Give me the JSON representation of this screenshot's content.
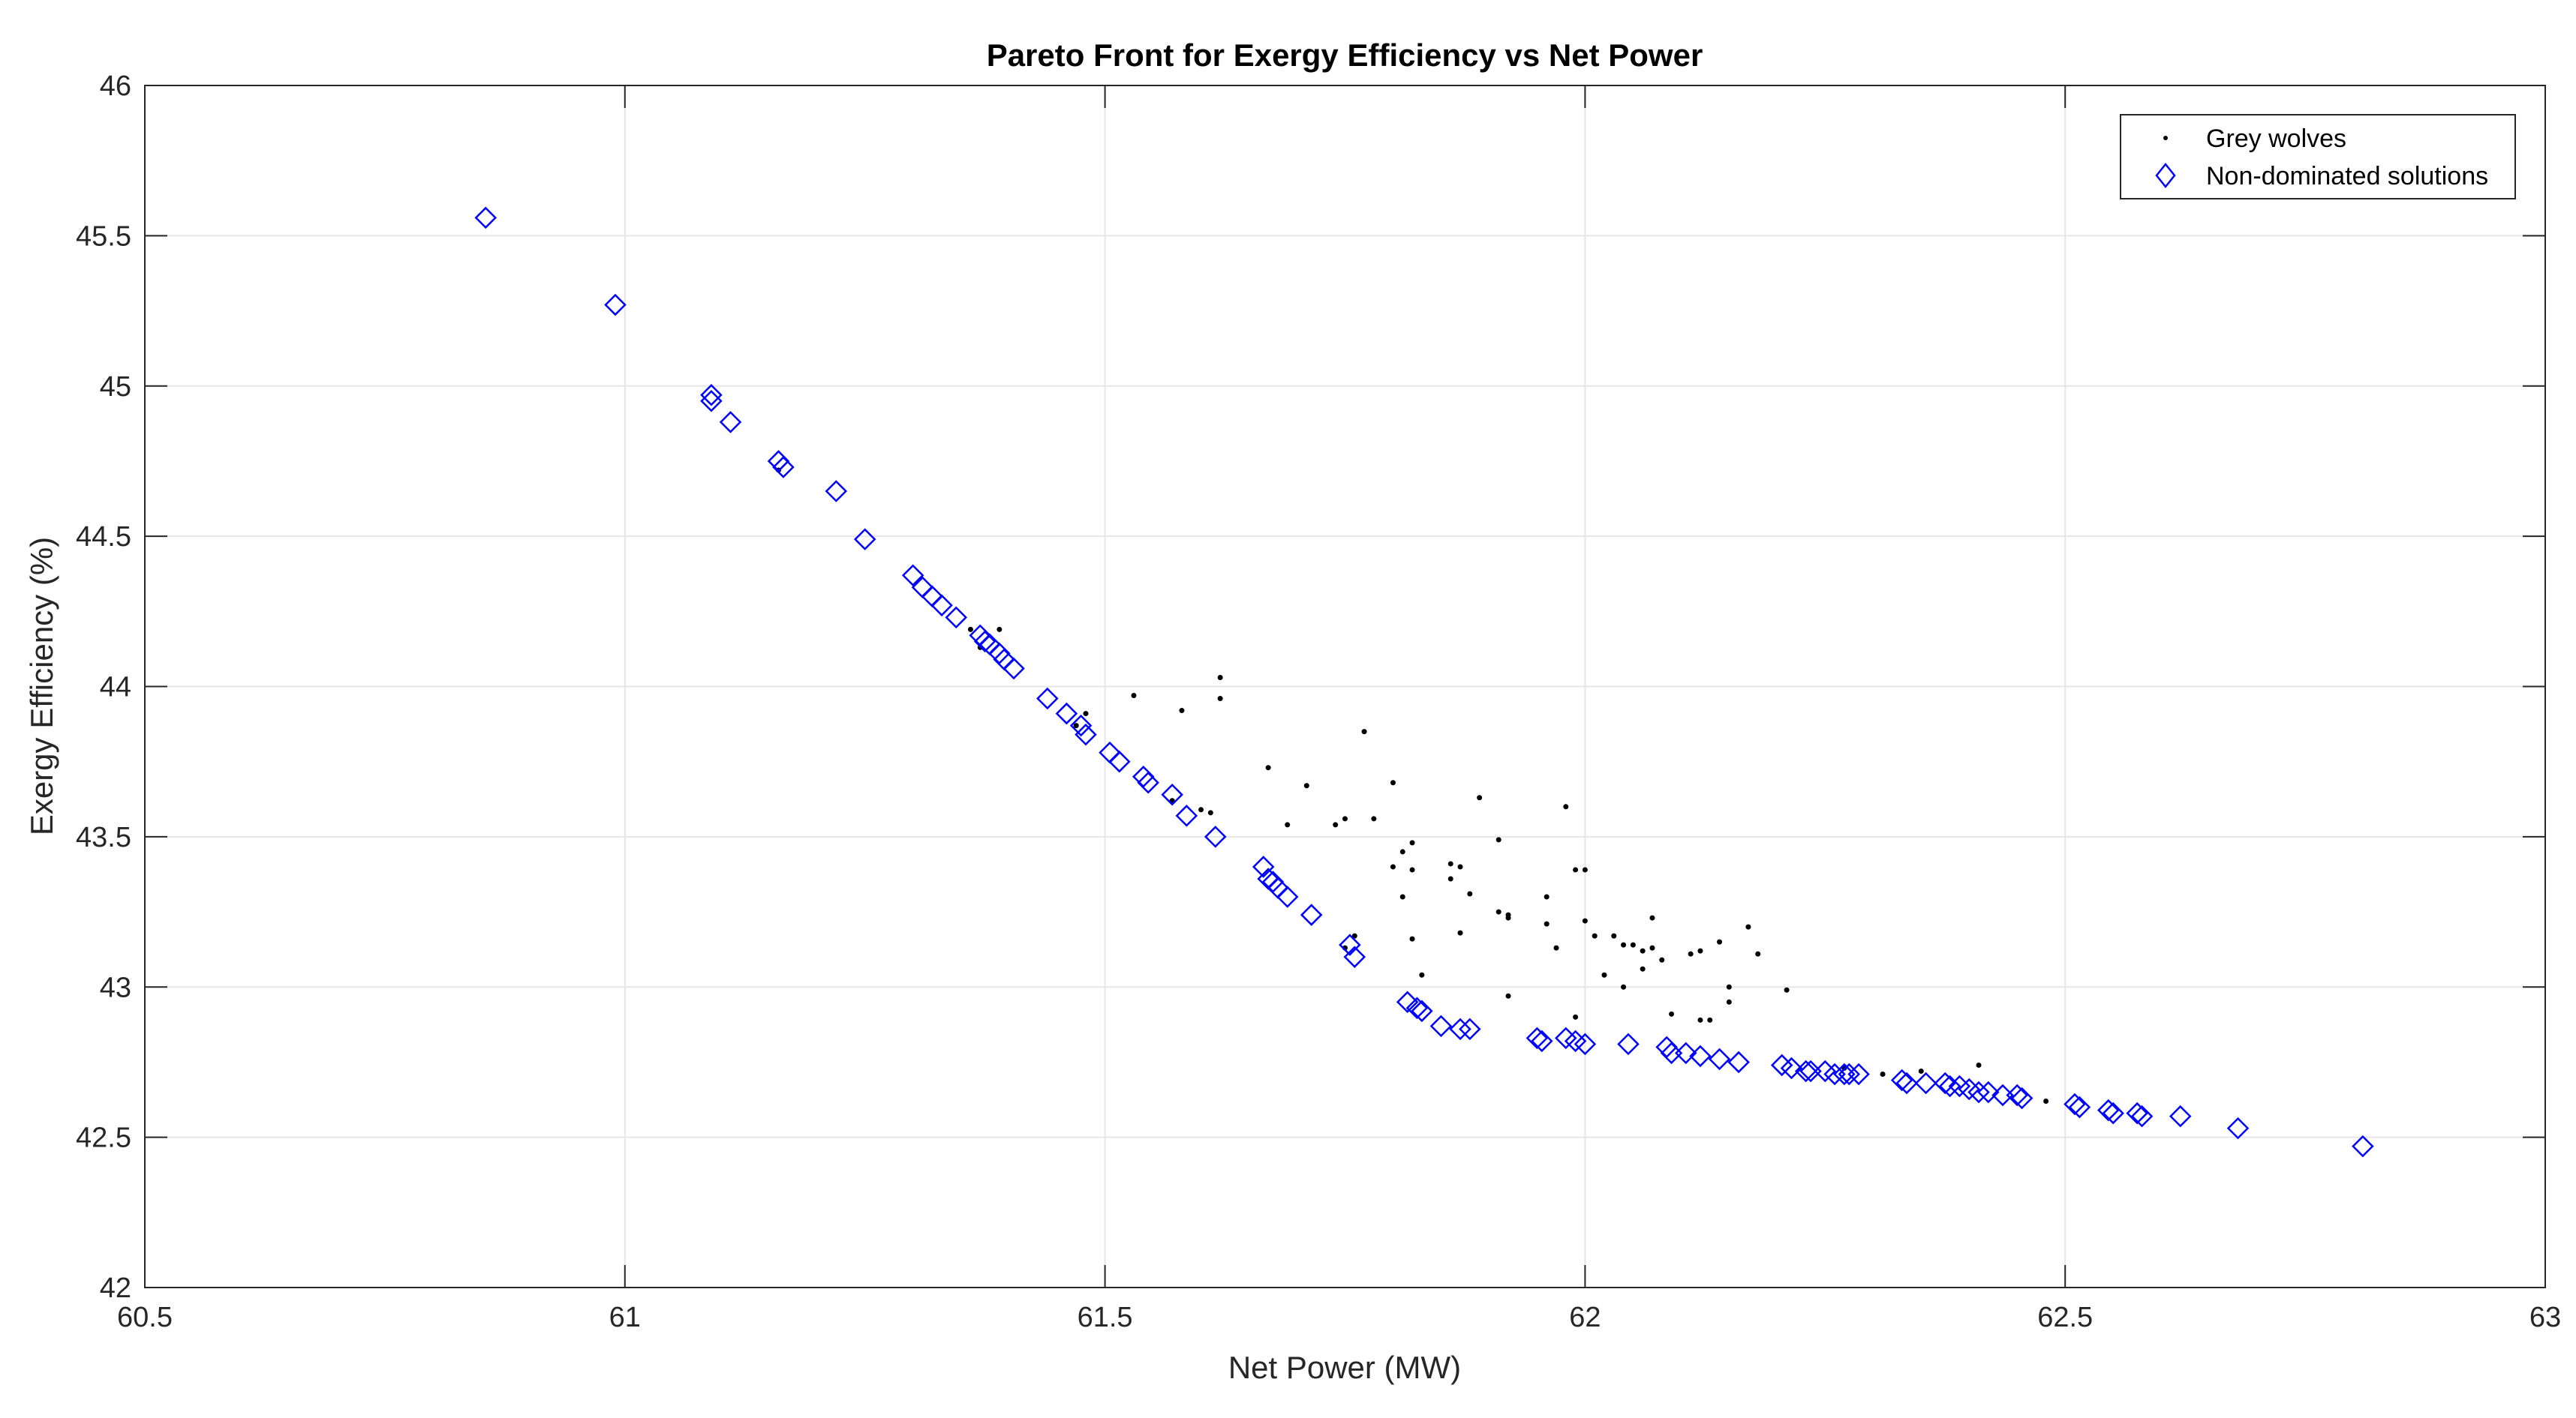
{
  "chart_data": {
    "type": "scatter",
    "title": "Pareto Front for Exergy Efficiency vs Net Power",
    "xlabel": "Net Power (MW)",
    "ylabel": "Exergy Efficiency (%)",
    "xlim": [
      60.5,
      63
    ],
    "ylim": [
      42,
      46
    ],
    "xticks": [
      60.5,
      61,
      61.5,
      62,
      62.5,
      63
    ],
    "xtick_labels": [
      "60.5",
      "61",
      "61.5",
      "62",
      "62.5",
      "63"
    ],
    "yticks": [
      42,
      42.5,
      43,
      43.5,
      44,
      44.5,
      45,
      45.5,
      46
    ],
    "ytick_labels": [
      "42",
      "42.5",
      "43",
      "43.5",
      "44",
      "44.5",
      "45",
      "45.5",
      "46"
    ],
    "grid": true,
    "legend_position": "top-right",
    "colors": {
      "wolves": "#000000",
      "front": "#0000ff",
      "grid": "#e6e6e6",
      "axis": "#262626"
    },
    "series": [
      {
        "name": "Grey wolves",
        "marker": "dot",
        "points": [
          [
            61.16,
            44.72
          ],
          [
            61.36,
            44.19
          ],
          [
            61.39,
            44.19
          ],
          [
            61.37,
            44.13
          ],
          [
            61.48,
            43.91
          ],
          [
            61.47,
            43.87
          ],
          [
            61.53,
            43.97
          ],
          [
            61.58,
            43.92
          ],
          [
            61.62,
            44.03
          ],
          [
            61.62,
            43.96
          ],
          [
            61.6,
            43.59
          ],
          [
            61.61,
            43.58
          ],
          [
            61.57,
            43.62
          ],
          [
            61.67,
            43.73
          ],
          [
            61.71,
            43.67
          ],
          [
            61.69,
            43.54
          ],
          [
            61.74,
            43.54
          ],
          [
            61.75,
            43.56
          ],
          [
            61.77,
            43.85
          ],
          [
            61.78,
            43.56
          ],
          [
            61.8,
            43.68
          ],
          [
            61.8,
            43.4
          ],
          [
            61.82,
            43.48
          ],
          [
            61.81,
            43.45
          ],
          [
            61.82,
            43.39
          ],
          [
            61.81,
            43.3
          ],
          [
            61.82,
            43.16
          ],
          [
            61.83,
            43.04
          ],
          [
            61.76,
            43.17
          ],
          [
            61.75,
            43.13
          ],
          [
            61.86,
            43.41
          ],
          [
            61.87,
            43.4
          ],
          [
            61.86,
            43.36
          ],
          [
            61.89,
            43.63
          ],
          [
            61.88,
            43.31
          ],
          [
            61.87,
            43.18
          ],
          [
            61.91,
            43.49
          ],
          [
            61.91,
            43.25
          ],
          [
            61.92,
            43.24
          ],
          [
            61.92,
            43.23
          ],
          [
            61.92,
            42.97
          ],
          [
            61.96,
            43.3
          ],
          [
            61.96,
            43.21
          ],
          [
            61.97,
            43.13
          ],
          [
            61.98,
            43.6
          ],
          [
            61.99,
            43.39
          ],
          [
            62.0,
            43.39
          ],
          [
            62.0,
            43.22
          ],
          [
            62.01,
            43.17
          ],
          [
            62.02,
            43.04
          ],
          [
            62.03,
            43.17
          ],
          [
            62.04,
            43.14
          ],
          [
            62.05,
            43.14
          ],
          [
            62.06,
            43.12
          ],
          [
            62.04,
            43.0
          ],
          [
            62.07,
            43.23
          ],
          [
            62.07,
            43.13
          ],
          [
            62.08,
            43.09
          ],
          [
            62.06,
            43.06
          ],
          [
            62.09,
            42.91
          ],
          [
            62.11,
            43.11
          ],
          [
            62.12,
            43.12
          ],
          [
            62.14,
            43.15
          ],
          [
            62.12,
            42.89
          ],
          [
            62.13,
            42.89
          ],
          [
            62.15,
            43.0
          ],
          [
            62.15,
            42.95
          ],
          [
            62.17,
            43.2
          ],
          [
            62.18,
            43.11
          ],
          [
            62.21,
            42.99
          ],
          [
            61.99,
            42.9
          ],
          [
            62.41,
            42.74
          ],
          [
            62.35,
            42.72
          ],
          [
            62.48,
            42.62
          ],
          [
            62.31,
            42.71
          ],
          [
            62.27,
            42.73
          ]
        ]
      },
      {
        "name": "Non-dominated solutions",
        "marker": "diamond",
        "points": [
          [
            60.855,
            45.56
          ],
          [
            60.99,
            45.27
          ],
          [
            61.09,
            44.97
          ],
          [
            61.09,
            44.95
          ],
          [
            61.11,
            44.88
          ],
          [
            61.16,
            44.75
          ],
          [
            61.165,
            44.73
          ],
          [
            61.22,
            44.65
          ],
          [
            61.25,
            44.49
          ],
          [
            61.3,
            44.37
          ],
          [
            61.31,
            44.33
          ],
          [
            61.32,
            44.3
          ],
          [
            61.33,
            44.27
          ],
          [
            61.345,
            44.23
          ],
          [
            61.37,
            44.17
          ],
          [
            61.375,
            44.15
          ],
          [
            61.38,
            44.14
          ],
          [
            61.39,
            44.11
          ],
          [
            61.395,
            44.09
          ],
          [
            61.405,
            44.06
          ],
          [
            61.44,
            43.96
          ],
          [
            61.46,
            43.91
          ],
          [
            61.475,
            43.87
          ],
          [
            61.48,
            43.84
          ],
          [
            61.505,
            43.78
          ],
          [
            61.515,
            43.75
          ],
          [
            61.54,
            43.7
          ],
          [
            61.545,
            43.68
          ],
          [
            61.57,
            43.64
          ],
          [
            61.585,
            43.57
          ],
          [
            61.615,
            43.5
          ],
          [
            61.665,
            43.4
          ],
          [
            61.67,
            43.36
          ],
          [
            61.675,
            43.35
          ],
          [
            61.68,
            43.33
          ],
          [
            61.69,
            43.3
          ],
          [
            61.715,
            43.24
          ],
          [
            61.755,
            43.14
          ],
          [
            61.76,
            43.1
          ],
          [
            61.815,
            42.95
          ],
          [
            61.825,
            42.93
          ],
          [
            61.83,
            42.92
          ],
          [
            61.85,
            42.87
          ],
          [
            61.87,
            42.86
          ],
          [
            61.88,
            42.86
          ],
          [
            61.95,
            42.83
          ],
          [
            61.955,
            42.82
          ],
          [
            61.98,
            42.83
          ],
          [
            61.99,
            42.82
          ],
          [
            62.0,
            42.81
          ],
          [
            62.045,
            42.81
          ],
          [
            62.085,
            42.8
          ],
          [
            62.09,
            42.78
          ],
          [
            62.105,
            42.78
          ],
          [
            62.12,
            42.77
          ],
          [
            62.14,
            42.76
          ],
          [
            62.16,
            42.75
          ],
          [
            62.205,
            42.74
          ],
          [
            62.215,
            42.73
          ],
          [
            62.23,
            42.72
          ],
          [
            62.235,
            42.72
          ],
          [
            62.25,
            42.72
          ],
          [
            62.26,
            42.71
          ],
          [
            62.27,
            42.71
          ],
          [
            62.275,
            42.71
          ],
          [
            62.285,
            42.71
          ],
          [
            62.33,
            42.69
          ],
          [
            62.335,
            42.68
          ],
          [
            62.355,
            42.68
          ],
          [
            62.375,
            42.68
          ],
          [
            62.38,
            42.67
          ],
          [
            62.39,
            42.67
          ],
          [
            62.4,
            42.66
          ],
          [
            62.41,
            42.65
          ],
          [
            62.42,
            42.65
          ],
          [
            62.435,
            42.64
          ],
          [
            62.45,
            42.64
          ],
          [
            62.455,
            42.63
          ],
          [
            62.51,
            42.61
          ],
          [
            62.515,
            42.6
          ],
          [
            62.545,
            42.59
          ],
          [
            62.55,
            42.58
          ],
          [
            62.575,
            42.58
          ],
          [
            62.58,
            42.57
          ],
          [
            62.62,
            42.57
          ],
          [
            62.68,
            42.53
          ],
          [
            62.81,
            42.47
          ]
        ]
      }
    ]
  }
}
